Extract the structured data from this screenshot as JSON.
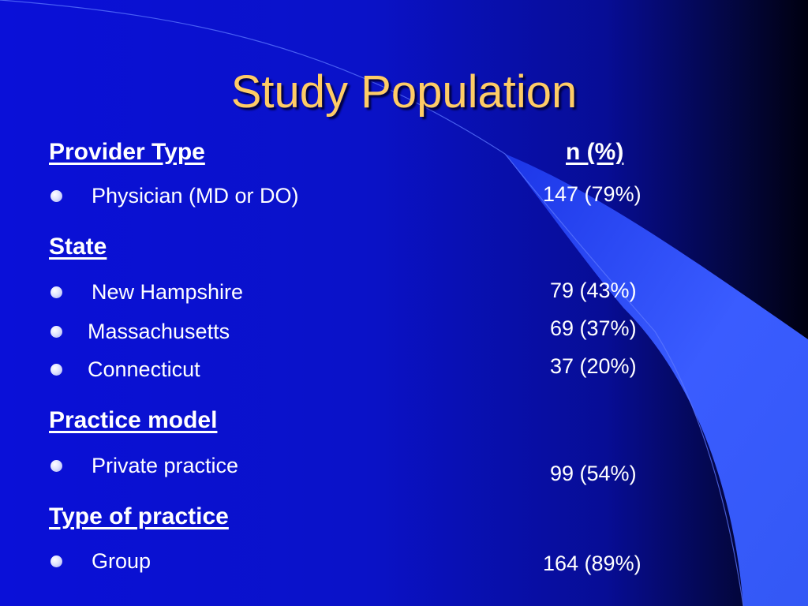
{
  "title": "Study Population",
  "column_header": "n (%)",
  "sections": [
    {
      "heading": "Provider Type",
      "items": [
        {
          "label": "Physician (MD or DO)",
          "value": "147 (79%)"
        }
      ]
    },
    {
      "heading": "State",
      "items": [
        {
          "label": "New Hampshire",
          "value": "79 (43%)"
        },
        {
          "label": "Massachusetts",
          "value": "69 (37%)"
        },
        {
          "label": "Connecticut",
          "value": "37 (20%)"
        }
      ]
    },
    {
      "heading": "Practice model",
      "items": [
        {
          "label": "Private practice",
          "value": "99 (54%)"
        }
      ]
    },
    {
      "heading": "Type of practice",
      "items": [
        {
          "label": "Group",
          "value": "164 (89%)"
        }
      ]
    }
  ],
  "colors": {
    "background": "#0a10d8",
    "title": "#ffcc66",
    "text": "#ffffff",
    "accent": "#3a5cff"
  }
}
